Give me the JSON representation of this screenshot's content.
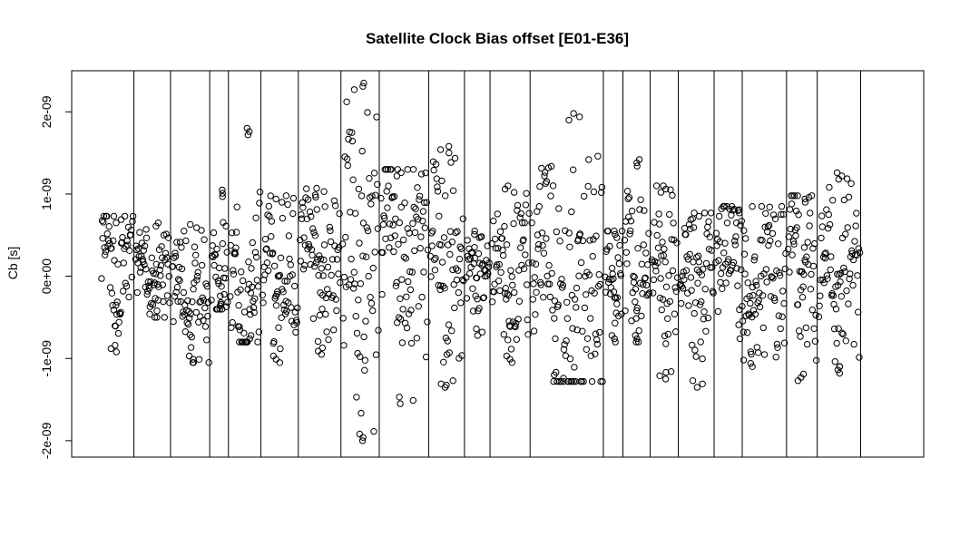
{
  "chart_data": {
    "type": "scatter",
    "title": "Satellite Clock Bias offset [E01-E36]",
    "xlabel": "",
    "ylabel": "Cb [s]",
    "ylim": [
      -2.2e-09,
      2.5e-09
    ],
    "xlim": [
      0,
      1
    ],
    "yticks": [
      {
        "value": -2e-09,
        "label": "-2e-09"
      },
      {
        "value": -1e-09,
        "label": "-1e-09"
      },
      {
        "value": 0,
        "label": "0e+00"
      },
      {
        "value": 1e-09,
        "label": "1e-09"
      },
      {
        "value": 2e-09,
        "label": "2e-09"
      }
    ],
    "grid": false,
    "marker": "open-circle",
    "segments": [
      {
        "x0": 0.035,
        "x1": 0.072,
        "min": -0.92,
        "max": 0.73,
        "center": 0.15
      },
      {
        "x0": 0.075,
        "x1": 0.115,
        "min": -0.5,
        "max": 0.65,
        "center": 0.0
      },
      {
        "x0": 0.118,
        "x1": 0.161,
        "min": -1.05,
        "max": 0.63,
        "center": -0.3
      },
      {
        "x0": 0.164,
        "x1": 0.183,
        "min": -0.4,
        "max": 1.05,
        "center": 0.0
      },
      {
        "x0": 0.186,
        "x1": 0.221,
        "min": -0.8,
        "max": 1.8,
        "center": -0.2
      },
      {
        "x0": 0.224,
        "x1": 0.265,
        "min": -1.05,
        "max": 0.98,
        "center": 0.0
      },
      {
        "x0": 0.268,
        "x1": 0.315,
        "min": -0.95,
        "max": 1.07,
        "center": 0.2
      },
      {
        "x0": 0.318,
        "x1": 0.36,
        "min": -2.0,
        "max": 2.35,
        "center": 0.0
      },
      {
        "x0": 0.363,
        "x1": 0.418,
        "min": -1.55,
        "max": 1.3,
        "center": 0.3
      },
      {
        "x0": 0.421,
        "x1": 0.46,
        "min": -1.35,
        "max": 1.58,
        "center": 0.2
      },
      {
        "x0": 0.463,
        "x1": 0.49,
        "min": -0.72,
        "max": 0.55,
        "center": 0.0
      },
      {
        "x0": 0.493,
        "x1": 0.537,
        "min": -1.05,
        "max": 1.1,
        "center": 0.0
      },
      {
        "x0": 0.54,
        "x1": 0.623,
        "min": -1.28,
        "max": 1.98,
        "center": -0.1
      },
      {
        "x0": 0.626,
        "x1": 0.646,
        "min": -0.8,
        "max": 0.55,
        "center": 0.0
      },
      {
        "x0": 0.649,
        "x1": 0.678,
        "min": -0.8,
        "max": 1.42,
        "center": 0.0
      },
      {
        "x0": 0.681,
        "x1": 0.711,
        "min": -1.25,
        "max": 1.1,
        "center": -0.1
      },
      {
        "x0": 0.714,
        "x1": 0.753,
        "min": -1.35,
        "max": 0.77,
        "center": 0.0
      },
      {
        "x0": 0.756,
        "x1": 0.838,
        "min": -1.1,
        "max": 0.85,
        "center": 0.0
      },
      {
        "x0": 0.841,
        "x1": 0.874,
        "min": -1.27,
        "max": 0.98,
        "center": 0.0
      },
      {
        "x0": 0.877,
        "x1": 0.925,
        "min": -1.18,
        "max": 1.26,
        "center": 0.0
      }
    ],
    "separators": [
      0.073,
      0.116,
      0.162,
      0.184,
      0.222,
      0.266,
      0.316,
      0.361,
      0.419,
      0.461,
      0.491,
      0.538,
      0.624,
      0.647,
      0.679,
      0.712,
      0.754,
      0.787,
      0.839,
      0.875,
      0.926
    ]
  }
}
